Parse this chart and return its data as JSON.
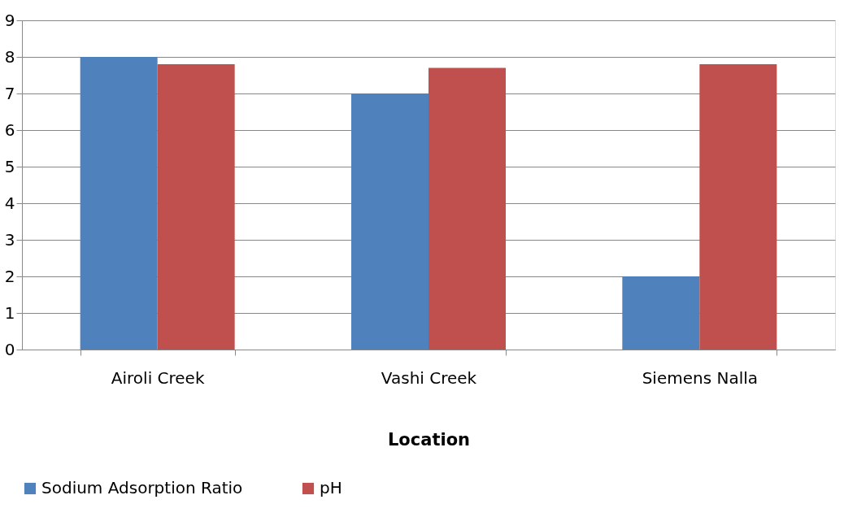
{
  "chart_data": {
    "type": "bar",
    "xlabel": "Location",
    "categories": [
      "Airoli Creek",
      "Vashi Creek",
      "Siemens Nalla"
    ],
    "series": [
      {
        "name": "Sodium Adsorption Ratio",
        "color": "#4f81bd",
        "values": [
          8,
          7,
          2
        ]
      },
      {
        "name": "pH",
        "color": "#c0504d",
        "values": [
          7.8,
          7.7,
          7.8
        ]
      }
    ],
    "ylim": [
      0,
      9
    ],
    "yticks": [
      0,
      1,
      2,
      3,
      4,
      5,
      6,
      7,
      8,
      9
    ],
    "grid": "y",
    "legend": "bottom"
  }
}
